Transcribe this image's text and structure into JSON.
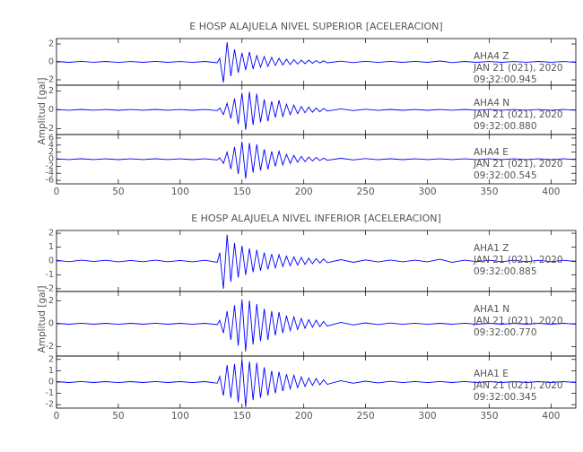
{
  "chart_data": [
    {
      "type": "line",
      "title": "E HOSP ALAJUELA NIVEL SUPERIOR [ACELERACION]",
      "ylabel": "Amplitud [gal]",
      "xlim": [
        0,
        420
      ],
      "xticks": [
        0,
        50,
        100,
        150,
        200,
        250,
        300,
        350,
        400
      ],
      "color": "#0000ff",
      "x": [
        0,
        10,
        20,
        30,
        40,
        50,
        60,
        70,
        80,
        90,
        100,
        110,
        120,
        130,
        132,
        135,
        138,
        141,
        144,
        147,
        150,
        153,
        156,
        159,
        162,
        165,
        168,
        171,
        174,
        177,
        180,
        183,
        186,
        189,
        192,
        195,
        198,
        201,
        204,
        207,
        210,
        213,
        216,
        219,
        230,
        240,
        250,
        260,
        270,
        280,
        290,
        300,
        310,
        320,
        330,
        340,
        350,
        360,
        370,
        380,
        390,
        400,
        410,
        420
      ],
      "panels": [
        {
          "station": "AHA4   Z",
          "date": "JAN 21 (021), 2020",
          "time": "09:32:00.945",
          "ylim": [
            -2.6,
            2.6
          ],
          "yticks": [
            -2,
            0,
            2
          ],
          "values": [
            0.05,
            -0.05,
            0.06,
            -0.04,
            0.05,
            -0.06,
            0.04,
            -0.05,
            0.06,
            -0.05,
            0.04,
            -0.06,
            0.05,
            -0.1,
            0.4,
            -2.3,
            2.2,
            -1.6,
            1.4,
            -1.2,
            1.0,
            -0.9,
            1.1,
            -0.8,
            0.7,
            -0.6,
            0.6,
            -0.5,
            0.5,
            -0.4,
            0.4,
            -0.35,
            0.3,
            -0.3,
            0.25,
            -0.25,
            0.2,
            -0.2,
            0.2,
            -0.15,
            0.15,
            -0.12,
            0.12,
            -0.1,
            0.08,
            -0.08,
            0.07,
            -0.06,
            0.06,
            -0.05,
            0.06,
            -0.05,
            0.1,
            -0.08,
            0.05,
            -0.05,
            0.04,
            -0.05,
            0.04,
            -0.04,
            0.05,
            -0.04,
            0.04,
            -0.05
          ]
        },
        {
          "station": "AHA4   N",
          "date": "JAN 21 (021), 2020",
          "time": "09:32:00.880",
          "ylim": [
            -2.6,
            2.6
          ],
          "yticks": [
            -2,
            0,
            2
          ],
          "values": [
            0.04,
            -0.04,
            0.05,
            -0.04,
            0.04,
            -0.05,
            0.04,
            -0.04,
            0.05,
            -0.04,
            0.04,
            -0.05,
            0.04,
            -0.08,
            0.2,
            -0.5,
            0.7,
            -0.9,
            1.2,
            -1.5,
            1.8,
            -2.1,
            1.9,
            -1.6,
            1.7,
            -1.3,
            1.1,
            -1.2,
            0.9,
            -0.8,
            1.0,
            -0.7,
            0.6,
            -0.5,
            0.5,
            -0.4,
            0.35,
            -0.3,
            0.3,
            -0.25,
            0.2,
            -0.2,
            0.15,
            -0.12,
            0.1,
            -0.08,
            0.07,
            -0.06,
            0.05,
            -0.05,
            0.04,
            -0.05,
            0.04,
            -0.04,
            0.05,
            -0.04,
            0.04,
            -0.04,
            0.04,
            -0.04,
            0.04,
            -0.04,
            0.04,
            -0.04
          ]
        },
        {
          "station": "AHA4   E",
          "date": "JAN 21 (021), 2020",
          "time": "09:32:00.545",
          "ylim": [
            -7,
            7
          ],
          "yticks": [
            -6,
            -4,
            -2,
            0,
            2,
            4,
            6
          ],
          "values": [
            0.1,
            -0.1,
            0.12,
            -0.1,
            0.1,
            -0.12,
            0.1,
            -0.1,
            0.12,
            -0.1,
            0.1,
            -0.12,
            0.1,
            -0.2,
            0.4,
            -1.2,
            2.0,
            -2.8,
            3.5,
            -4.2,
            5.0,
            -5.5,
            4.6,
            -3.8,
            4.2,
            -3.2,
            2.8,
            -2.9,
            2.2,
            -2.0,
            2.3,
            -1.6,
            1.4,
            -1.2,
            1.1,
            -0.9,
            0.8,
            -0.7,
            0.6,
            -0.5,
            0.5,
            -0.4,
            0.3,
            -0.3,
            0.25,
            -0.2,
            0.18,
            -0.15,
            0.12,
            -0.12,
            0.1,
            -0.1,
            0.1,
            -0.1,
            0.1,
            -0.1,
            0.1,
            -0.1,
            0.1,
            -0.1,
            0.1,
            -0.1,
            0.1,
            -0.1
          ]
        }
      ]
    },
    {
      "type": "line",
      "title": "E HOSP ALAJUELA NIVEL INFERIOR [ACELERACION]",
      "ylabel": "Amplitud [gal]",
      "xlim": [
        0,
        420
      ],
      "xticks": [
        0,
        50,
        100,
        150,
        200,
        250,
        300,
        350,
        400
      ],
      "color": "#0000ff",
      "x": [
        0,
        10,
        20,
        30,
        40,
        50,
        60,
        70,
        80,
        90,
        100,
        110,
        120,
        130,
        132,
        135,
        138,
        141,
        144,
        147,
        150,
        153,
        156,
        159,
        162,
        165,
        168,
        171,
        174,
        177,
        180,
        183,
        186,
        189,
        192,
        195,
        198,
        201,
        204,
        207,
        210,
        213,
        216,
        219,
        230,
        240,
        250,
        260,
        270,
        280,
        290,
        300,
        310,
        320,
        330,
        340,
        350,
        360,
        370,
        380,
        390,
        400,
        410,
        420
      ],
      "panels": [
        {
          "station": "AHA1   Z",
          "date": "JAN 21 (021), 2020",
          "time": "09:32:00.885",
          "ylim": [
            -2.2,
            2.2
          ],
          "yticks": [
            -2,
            -1,
            0,
            1,
            2
          ],
          "values": [
            0.05,
            -0.05,
            0.06,
            -0.04,
            0.05,
            -0.06,
            0.04,
            -0.05,
            0.06,
            -0.05,
            0.04,
            -0.06,
            0.05,
            -0.1,
            0.6,
            -2.0,
            1.9,
            -1.5,
            1.3,
            -1.2,
            1.1,
            -1.0,
            0.9,
            -0.8,
            0.8,
            -0.7,
            0.6,
            -0.6,
            0.5,
            -0.5,
            0.45,
            -0.4,
            0.35,
            -0.35,
            0.3,
            -0.3,
            0.25,
            -0.25,
            0.2,
            -0.2,
            0.18,
            -0.15,
            0.15,
            -0.12,
            0.1,
            -0.1,
            0.08,
            -0.07,
            0.07,
            -0.06,
            0.06,
            -0.06,
            0.12,
            -0.1,
            0.06,
            -0.05,
            0.05,
            -0.05,
            0.05,
            -0.05,
            0.05,
            -0.05,
            0.05,
            -0.05
          ]
        },
        {
          "station": "AHA1   N",
          "date": "JAN 21 (021), 2020",
          "time": "09:32:00.770",
          "ylim": [
            -2.8,
            2.8
          ],
          "yticks": [
            -2,
            0,
            2
          ],
          "values": [
            0.04,
            -0.04,
            0.05,
            -0.04,
            0.04,
            -0.05,
            0.04,
            -0.04,
            0.05,
            -0.04,
            0.04,
            -0.05,
            0.04,
            -0.08,
            0.3,
            -0.8,
            1.1,
            -1.4,
            1.6,
            -1.9,
            2.1,
            -2.4,
            2.0,
            -1.8,
            1.7,
            -1.5,
            1.3,
            -1.4,
            1.1,
            -1.0,
            1.0,
            -0.8,
            0.7,
            -0.6,
            0.6,
            -0.5,
            0.45,
            -0.4,
            0.35,
            -0.3,
            0.3,
            -0.25,
            0.2,
            -0.2,
            0.12,
            -0.1,
            0.08,
            -0.07,
            0.06,
            -0.05,
            0.05,
            -0.05,
            0.04,
            -0.04,
            0.05,
            -0.04,
            0.04,
            -0.04,
            0.04,
            -0.04,
            0.04,
            -0.04,
            0.04,
            -0.04
          ]
        },
        {
          "station": "AHA1   E",
          "date": "JAN 21 (021), 2020",
          "time": "09:32:00.345",
          "ylim": [
            -2.3,
            2.3
          ],
          "yticks": [
            -2,
            -1,
            0,
            1,
            2
          ],
          "values": [
            0.04,
            -0.04,
            0.05,
            -0.04,
            0.04,
            -0.05,
            0.04,
            -0.04,
            0.05,
            -0.04,
            0.04,
            -0.05,
            0.04,
            -0.1,
            0.5,
            -1.2,
            1.5,
            -1.4,
            1.6,
            -1.8,
            2.0,
            -2.2,
            1.8,
            -1.6,
            1.7,
            -1.4,
            1.3,
            -1.2,
            1.0,
            -1.0,
            0.9,
            -0.8,
            0.7,
            -0.6,
            0.6,
            -0.5,
            0.45,
            -0.4,
            0.35,
            -0.3,
            0.3,
            -0.25,
            0.2,
            -0.2,
            0.12,
            -0.1,
            0.08,
            -0.07,
            0.06,
            -0.05,
            0.05,
            -0.05,
            0.05,
            -0.04,
            0.05,
            -0.04,
            0.04,
            -0.04,
            0.04,
            -0.04,
            0.04,
            -0.04,
            0.04,
            -0.04
          ]
        }
      ]
    }
  ]
}
